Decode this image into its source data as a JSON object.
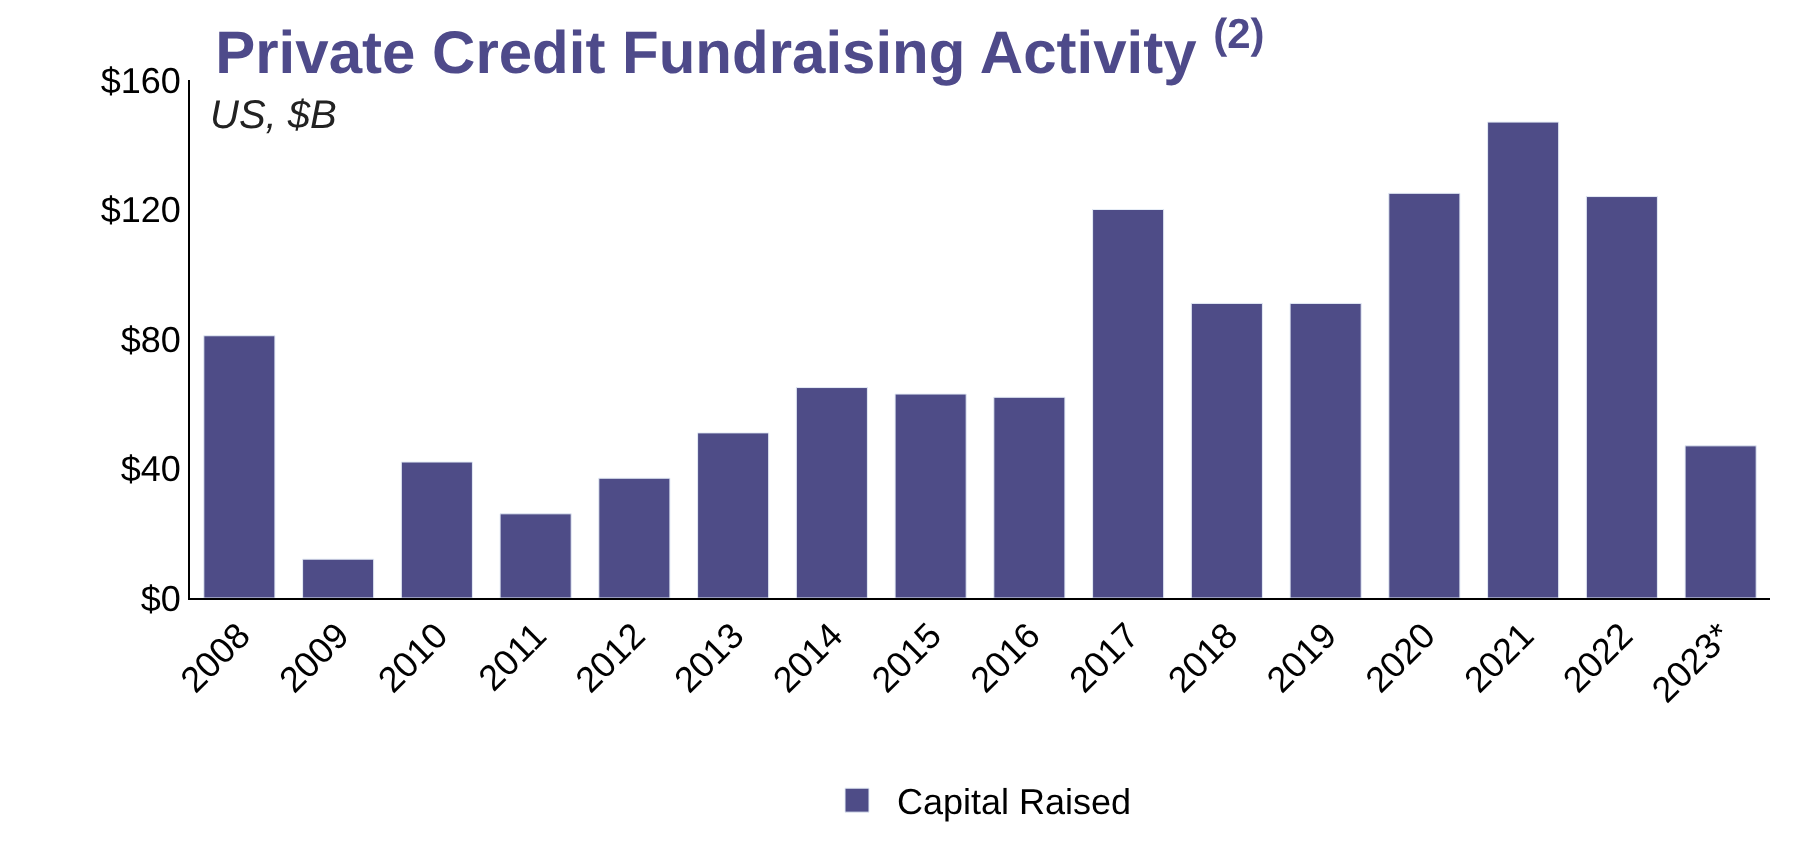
{
  "chart_data": {
    "type": "bar",
    "title": "Private Credit Fundraising Activity $^{(2)}$",
    "subtitle": "US, $B",
    "categories": [
      "2008",
      "2009",
      "2010",
      "2011",
      "2012",
      "2013",
      "2014",
      "2015",
      "2016",
      "2017",
      "2018",
      "2019",
      "2020",
      "2021",
      "2022",
      "2023*"
    ],
    "series": [
      {
        "name": "Capital Raised",
        "color": "#4e4c87",
        "values": [
          81,
          12,
          42,
          26,
          37,
          51,
          65,
          63,
          62,
          120,
          91,
          91,
          125,
          147,
          124,
          47
        ]
      }
    ],
    "ylim": [
      0,
      160
    ],
    "yticks": [
      {
        "value": 0,
        "label": "$0"
      },
      {
        "value": 40,
        "label": "$40"
      },
      {
        "value": 80,
        "label": "$80"
      },
      {
        "value": 120,
        "label": "$120"
      },
      {
        "value": 160,
        "label": "$160"
      }
    ],
    "legend": "bottom"
  }
}
